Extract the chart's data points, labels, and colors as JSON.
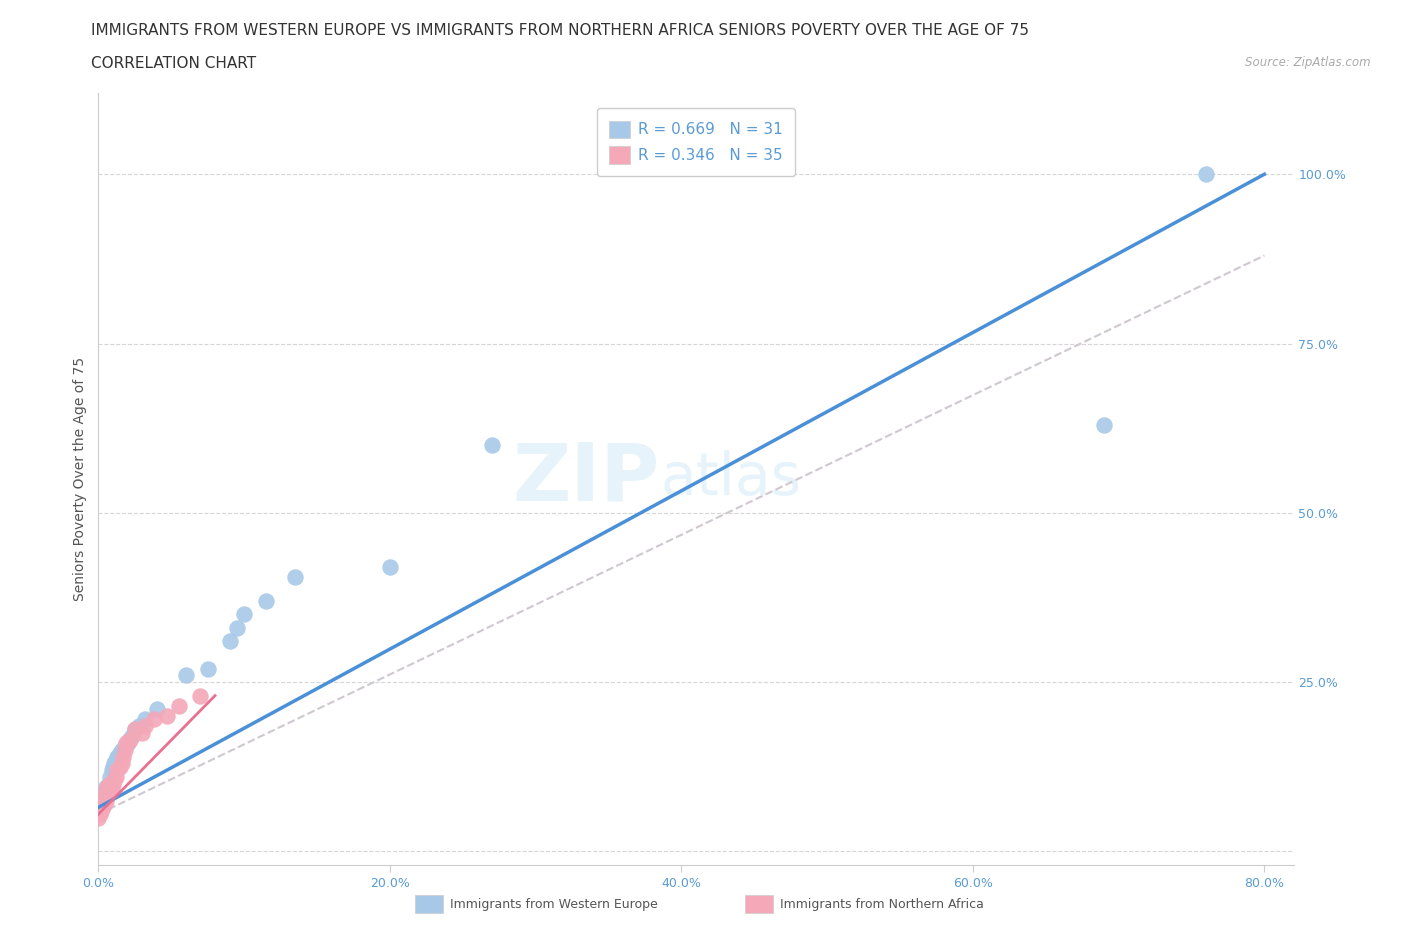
{
  "title_line1": "IMMIGRANTS FROM WESTERN EUROPE VS IMMIGRANTS FROM NORTHERN AFRICA SENIORS POVERTY OVER THE AGE OF 75",
  "title_line2": "CORRELATION CHART",
  "source": "Source: ZipAtlas.com",
  "ylabel": "Seniors Poverty Over the Age of 75",
  "xlim": [
    0.0,
    0.82
  ],
  "ylim": [
    -0.02,
    1.12
  ],
  "x_ticks": [
    0.0,
    0.2,
    0.4,
    0.6,
    0.8
  ],
  "x_tick_labels": [
    "0.0%",
    "20.0%",
    "40.0%",
    "60.0%",
    "80.0%"
  ],
  "y_ticks": [
    0.0,
    0.25,
    0.5,
    0.75,
    1.0
  ],
  "y_tick_labels": [
    "",
    "25.0%",
    "50.0%",
    "75.0%",
    "100.0%"
  ],
  "watermark_zip": "ZIP",
  "watermark_atlas": "atlas",
  "legend_r1": "R = 0.669   N = 31",
  "legend_r2": "R = 0.346   N = 35",
  "color_blue": "#a8c8e8",
  "color_pink": "#f4a8b8",
  "line_blue": "#4a90d9",
  "line_pink": "#e87090",
  "line_dashed": "#d0c8d0",
  "blue_scatter_x": [
    0.003,
    0.005,
    0.007,
    0.008,
    0.009,
    0.01,
    0.011,
    0.012,
    0.013,
    0.014,
    0.015,
    0.016,
    0.018,
    0.02,
    0.021,
    0.023,
    0.025,
    0.028,
    0.032,
    0.04,
    0.06,
    0.075,
    0.09,
    0.095,
    0.1,
    0.115,
    0.135,
    0.2,
    0.27,
    0.69,
    0.76
  ],
  "blue_scatter_y": [
    0.085,
    0.095,
    0.1,
    0.11,
    0.12,
    0.125,
    0.13,
    0.135,
    0.14,
    0.14,
    0.145,
    0.15,
    0.155,
    0.16,
    0.165,
    0.17,
    0.18,
    0.185,
    0.195,
    0.21,
    0.26,
    0.27,
    0.31,
    0.33,
    0.35,
    0.37,
    0.405,
    0.42,
    0.6,
    0.63,
    1.0
  ],
  "pink_scatter_x": [
    0.0,
    0.001,
    0.002,
    0.002,
    0.003,
    0.003,
    0.004,
    0.004,
    0.005,
    0.005,
    0.005,
    0.006,
    0.006,
    0.007,
    0.007,
    0.008,
    0.008,
    0.009,
    0.01,
    0.011,
    0.012,
    0.013,
    0.015,
    0.016,
    0.017,
    0.018,
    0.019,
    0.022,
    0.025,
    0.03,
    0.032,
    0.038,
    0.047,
    0.055,
    0.07
  ],
  "pink_scatter_y": [
    0.05,
    0.055,
    0.06,
    0.07,
    0.065,
    0.075,
    0.07,
    0.08,
    0.075,
    0.082,
    0.09,
    0.085,
    0.095,
    0.088,
    0.095,
    0.09,
    0.1,
    0.095,
    0.1,
    0.105,
    0.11,
    0.12,
    0.125,
    0.13,
    0.14,
    0.15,
    0.16,
    0.165,
    0.18,
    0.175,
    0.185,
    0.195,
    0.2,
    0.215,
    0.23
  ],
  "blue_line_x": [
    0.0,
    0.8
  ],
  "blue_line_y": [
    0.065,
    1.0
  ],
  "pink_line_x": [
    0.0,
    0.08
  ],
  "pink_line_y": [
    0.055,
    0.23
  ],
  "dashed_line_x": [
    0.0,
    0.8
  ],
  "dashed_line_y": [
    0.055,
    0.88
  ],
  "title_fontsize": 11,
  "subtitle_fontsize": 11,
  "axis_label_fontsize": 10,
  "tick_fontsize": 9,
  "legend_fontsize": 11,
  "background_color": "#ffffff"
}
